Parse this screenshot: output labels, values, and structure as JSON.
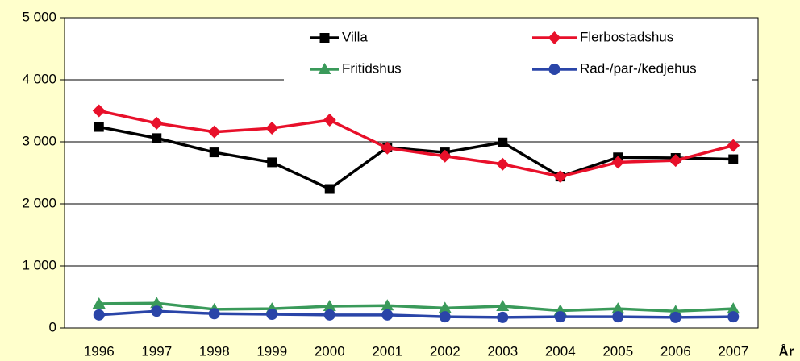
{
  "chart_data": {
    "type": "line",
    "x_label": "År",
    "categories": [
      "1996",
      "1997",
      "1998",
      "1999",
      "2000",
      "2001",
      "2002",
      "2003",
      "2004",
      "2005",
      "2006",
      "2007"
    ],
    "series": [
      {
        "name": "Villa",
        "color": "#000000",
        "marker": "square",
        "values": [
          3240,
          3060,
          2830,
          2670,
          2240,
          2910,
          2830,
          2990,
          2440,
          2750,
          2740,
          2720
        ]
      },
      {
        "name": "Flerbostadshus",
        "color": "#e8102a",
        "marker": "diamond",
        "values": [
          3500,
          3300,
          3160,
          3220,
          3350,
          2900,
          2770,
          2640,
          2440,
          2670,
          2700,
          2940
        ]
      },
      {
        "name": "Fritidshus",
        "color": "#3a9a5a",
        "marker": "triangle",
        "values": [
          390,
          400,
          300,
          310,
          350,
          360,
          320,
          350,
          280,
          310,
          270,
          310
        ]
      },
      {
        "name": "Rad-/par-/kedjehus",
        "color": "#2a45a8",
        "marker": "circle",
        "values": [
          210,
          270,
          230,
          220,
          210,
          210,
          180,
          170,
          180,
          180,
          170,
          180
        ]
      }
    ],
    "ylim": [
      0,
      5000
    ],
    "yticks": [
      {
        "value": 0,
        "label": "0"
      },
      {
        "value": 1000,
        "label": "1 000"
      },
      {
        "value": 2000,
        "label": "2 000"
      },
      {
        "value": 3000,
        "label": "3 000"
      },
      {
        "value": 4000,
        "label": "4 000"
      },
      {
        "value": 5000,
        "label": "5 000"
      }
    ],
    "grid": true,
    "legend": "upper right"
  }
}
